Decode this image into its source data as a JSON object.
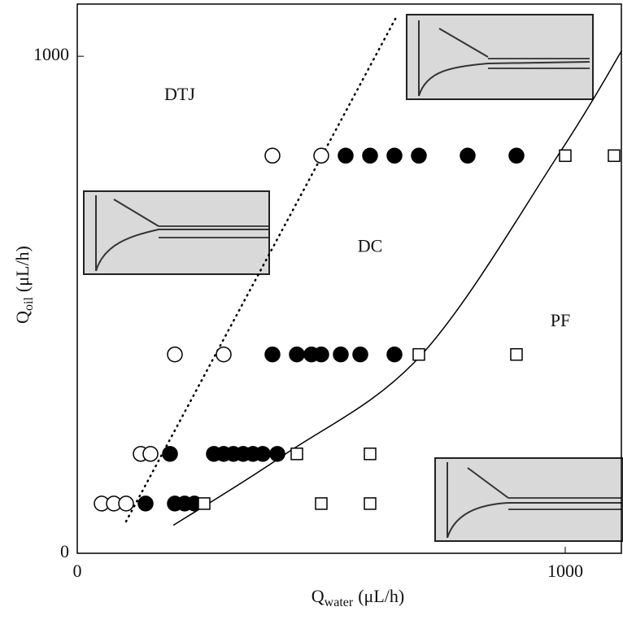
{
  "chart_data": {
    "type": "scatter",
    "xlim": [
      0,
      1115
    ],
    "ylim": [
      0,
      1105
    ],
    "xticks": [
      0,
      1000
    ],
    "yticks": [
      0,
      1000
    ],
    "x_label": {
      "main": "Q",
      "sub": "water",
      "unit": "(μL/h)"
    },
    "y_label": {
      "main": "Q",
      "sub": "oil",
      "unit": "(μL/h)"
    },
    "annotations": [
      {
        "text": "DTJ",
        "x": 210,
        "y": 920
      },
      {
        "text": "DC",
        "x": 600,
        "y": 615
      },
      {
        "text": "PF",
        "x": 990,
        "y": 465
      }
    ],
    "series": [
      {
        "marker": "open-circle",
        "color": "#000000",
        "x": [
          400,
          500,
          200,
          300,
          130,
          150,
          50,
          75,
          100
        ],
        "y": [
          800,
          800,
          400,
          400,
          200,
          200,
          100,
          100,
          100
        ]
      },
      {
        "marker": "filled-circle",
        "color": "#000000",
        "x": [
          550,
          600,
          650,
          700,
          800,
          900,
          400,
          450,
          480,
          500,
          540,
          580,
          650,
          190,
          280,
          300,
          320,
          340,
          360,
          380,
          410,
          140,
          200,
          220,
          240
        ],
        "y": [
          800,
          800,
          800,
          800,
          800,
          800,
          400,
          400,
          400,
          400,
          400,
          400,
          400,
          200,
          200,
          200,
          200,
          200,
          200,
          200,
          200,
          100,
          100,
          100,
          100
        ]
      },
      {
        "marker": "square",
        "color": "#000000",
        "x": [
          1000,
          1100,
          700,
          900,
          450,
          600,
          260,
          500,
          600
        ],
        "y": [
          800,
          800,
          400,
          400,
          200,
          200,
          100,
          100,
          100
        ]
      }
    ],
    "boundaries": [
      {
        "style": "dotted",
        "color": "#000000",
        "x": [
          100,
          656
        ],
        "y": [
          64,
          1083
        ]
      },
      {
        "style": "solid",
        "color": "#000000",
        "x": [
          198,
          424,
          706,
          988,
          1115
        ],
        "y": [
          57,
          198,
          400,
          805,
          1010
        ]
      }
    ]
  }
}
